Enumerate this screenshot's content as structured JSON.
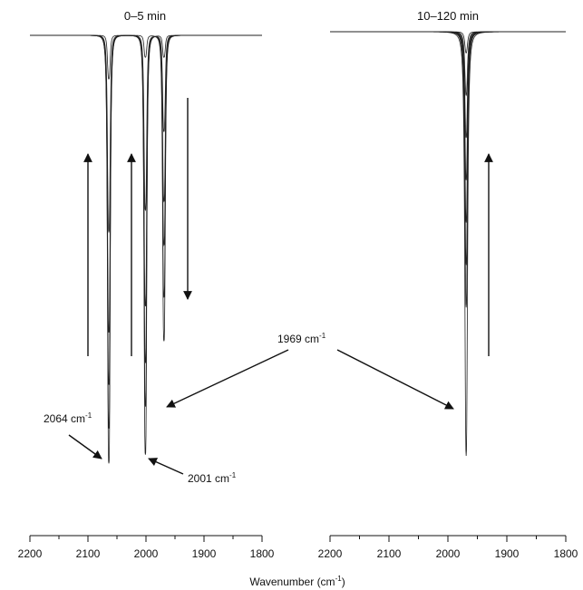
{
  "chart_data": [
    {
      "type": "line",
      "title": "0–5 min",
      "xlabel": "Wavenumber (cm⁻¹)",
      "xlim": [
        2200,
        1800
      ],
      "x_reversed": true,
      "xticks": [
        2200,
        2100,
        2000,
        1900,
        1800
      ],
      "yaxis_shown": false,
      "grid": false,
      "curves": 6,
      "peaks": [
        {
          "x": 2064,
          "label": "2064 cm⁻¹",
          "depths": [
            0.1,
            0.45,
            0.68,
            0.8,
            0.9,
            0.98
          ],
          "trend": "up"
        },
        {
          "x": 2001,
          "label": "2001 cm⁻¹",
          "depths": [
            0.05,
            0.4,
            0.62,
            0.75,
            0.85,
            0.96
          ],
          "trend": "up"
        },
        {
          "x": 1969,
          "label": "1969 cm⁻¹",
          "depths": [
            0.7,
            0.6,
            0.48,
            0.38,
            0.22,
            0.05
          ],
          "trend": "down"
        }
      ]
    },
    {
      "type": "line",
      "title": "10–120 min",
      "xlabel": "Wavenumber (cm⁻¹)",
      "xlim": [
        2200,
        1800
      ],
      "x_reversed": true,
      "xticks": [
        2200,
        2100,
        2000,
        1900,
        1800
      ],
      "yaxis_shown": false,
      "grid": false,
      "curves": 8,
      "peaks": [
        {
          "x": 1969,
          "label": "1969 cm⁻¹",
          "depths": [
            0.05,
            0.15,
            0.25,
            0.35,
            0.45,
            0.55,
            0.65,
            1.0
          ],
          "trend": "up"
        }
      ]
    }
  ],
  "figure": {
    "xlabel_text": "Wavenumber (cm",
    "xlabel_sup": "-1",
    "xlabel_close": ")",
    "annotations": {
      "p2064": {
        "num": "2064 cm",
        "sup": "-1"
      },
      "p2001": {
        "num": "2001 cm",
        "sup": "-1"
      },
      "p1969": {
        "num": "1969 cm",
        "sup": "-1"
      }
    }
  }
}
